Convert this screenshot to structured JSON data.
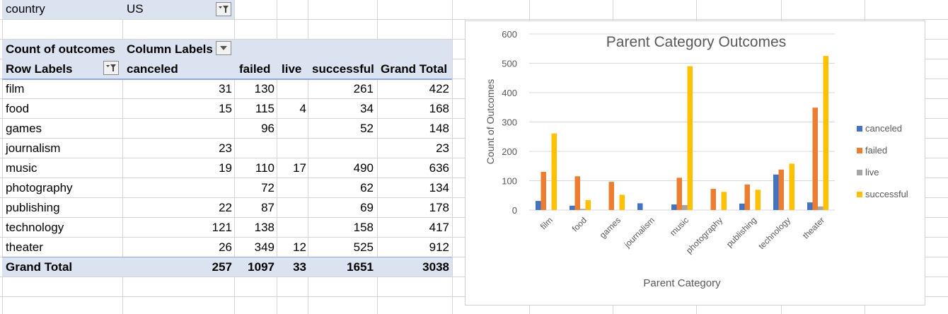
{
  "filter": {
    "field": "country",
    "value": "US"
  },
  "pivot": {
    "values_label": "Count of outcomes",
    "column_labels": "Column Labels",
    "row_labels": "Row Labels",
    "columns": [
      "canceled",
      "failed",
      "live",
      "successful",
      "Grand Total"
    ],
    "rows": [
      {
        "label": "film",
        "values": [
          "31",
          "130",
          "",
          "261",
          "422"
        ]
      },
      {
        "label": "food",
        "values": [
          "15",
          "115",
          "4",
          "34",
          "168"
        ]
      },
      {
        "label": "games",
        "values": [
          "",
          "96",
          "",
          "52",
          "148"
        ]
      },
      {
        "label": "journalism",
        "values": [
          "23",
          "",
          "",
          "",
          "23"
        ]
      },
      {
        "label": "music",
        "values": [
          "19",
          "110",
          "17",
          "490",
          "636"
        ]
      },
      {
        "label": "photography",
        "values": [
          "",
          "72",
          "",
          "62",
          "134"
        ]
      },
      {
        "label": "publishing",
        "values": [
          "22",
          "87",
          "",
          "69",
          "178"
        ]
      },
      {
        "label": "technology",
        "values": [
          "121",
          "138",
          "",
          "158",
          "417"
        ]
      },
      {
        "label": "theater",
        "values": [
          "26",
          "349",
          "12",
          "525",
          "912"
        ]
      }
    ],
    "grand_total": {
      "label": "Grand Total",
      "values": [
        "257",
        "1097",
        "33",
        "1651",
        "3038"
      ]
    }
  },
  "chart_data": {
    "type": "bar",
    "title": "Parent Category Outcomes",
    "xlabel": "Parent Category",
    "ylabel": "Count of Outcomes",
    "ylim": [
      0,
      600
    ],
    "yticks": [
      0,
      100,
      200,
      300,
      400,
      500,
      600
    ],
    "grid": true,
    "legend_position": "right",
    "categories": [
      "film",
      "food",
      "games",
      "journalism",
      "music",
      "photography",
      "publishing",
      "technology",
      "theater"
    ],
    "series": [
      {
        "name": "canceled",
        "color": "#4472c4",
        "values": [
          31,
          15,
          0,
          23,
          19,
          0,
          22,
          121,
          26
        ]
      },
      {
        "name": "failed",
        "color": "#ed7d31",
        "values": [
          130,
          115,
          96,
          0,
          110,
          72,
          87,
          138,
          349
        ]
      },
      {
        "name": "live",
        "color": "#a5a5a5",
        "values": [
          0,
          4,
          0,
          0,
          17,
          0,
          0,
          0,
          12
        ]
      },
      {
        "name": "successful",
        "color": "#ffc000",
        "values": [
          261,
          34,
          52,
          0,
          490,
          62,
          69,
          158,
          525
        ]
      }
    ]
  }
}
